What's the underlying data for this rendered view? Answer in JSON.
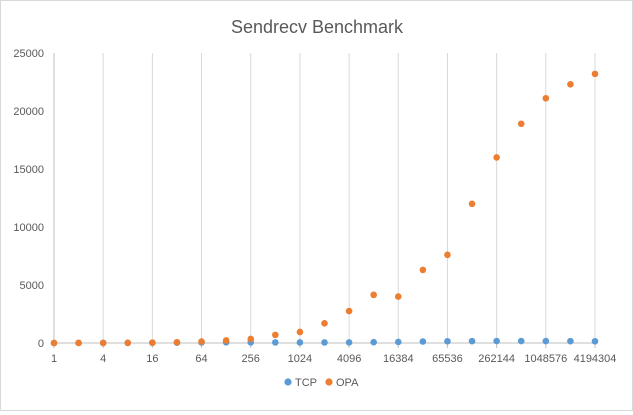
{
  "chart_data": {
    "type": "scatter",
    "title": "Sendrecv Benchmark",
    "xlabel": "",
    "ylabel": "",
    "x": [
      1,
      2,
      4,
      8,
      16,
      32,
      64,
      128,
      256,
      512,
      1024,
      2048,
      4096,
      8192,
      16384,
      32768,
      65536,
      131072,
      262144,
      524288,
      1048576,
      2097152,
      4194304
    ],
    "x_tick_labels": [
      "1",
      "4",
      "16",
      "64",
      "256",
      "1024",
      "4096",
      "16384",
      "65536",
      "262144",
      "1048576",
      "4194304"
    ],
    "ylim": [
      0,
      25000
    ],
    "y_ticks": [
      0,
      5000,
      10000,
      15000,
      20000,
      25000
    ],
    "grid": "vertical",
    "legend_position": "bottom",
    "series": [
      {
        "name": "TCP",
        "color": "#5b9bd5",
        "values": [
          1,
          2,
          4,
          7,
          13,
          25,
          45,
          60,
          55,
          50,
          45,
          45,
          50,
          70,
          90,
          130,
          150,
          160,
          170,
          170,
          170,
          160,
          150
        ]
      },
      {
        "name": "OPA",
        "color": "#ed7d31",
        "values": [
          2,
          4,
          9,
          17,
          33,
          65,
          120,
          220,
          350,
          700,
          950,
          1700,
          2750,
          4150,
          4000,
          6300,
          7600,
          12000,
          16000,
          18900,
          21100,
          22300,
          23200
        ]
      }
    ]
  }
}
